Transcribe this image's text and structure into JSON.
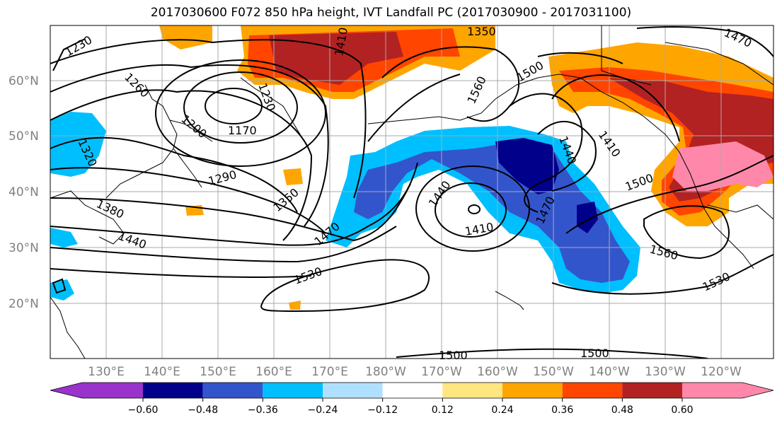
{
  "title": "2017030600 F072 850 hPa height, IVT Landfall PC (2017030900 - 2017031100)",
  "lat_labels": [
    "60°N",
    "50°N",
    "40°N",
    "30°N",
    "20°N"
  ],
  "lon_labels": [
    "130°E",
    "140°E",
    "150°E",
    "160°E",
    "170°E",
    "180°W",
    "170°W",
    "160°W",
    "150°W",
    "140°W",
    "130°W",
    "120°W"
  ],
  "contour_labels": [
    "1230",
    "1260",
    "1200",
    "1170",
    "1230",
    "1410",
    "1350",
    "1560",
    "1500",
    "1470",
    "1320",
    "1290",
    "1350",
    "1380",
    "1440",
    "1470",
    "1530",
    "1440",
    "1410",
    "1470",
    "1440",
    "1410",
    "1500",
    "1560",
    "1530",
    "1500",
    "1500"
  ],
  "colorbar": {
    "colors": [
      "#9933cc",
      "#00008b",
      "#3355cc",
      "#00bfff",
      "#b0e0ff",
      "#ffffff",
      "#ffe680",
      "#ffa500",
      "#ff4500",
      "#b22222",
      "#ff88aa"
    ],
    "ticks": [
      "−0.60",
      "−0.48",
      "−0.36",
      "−0.24",
      "−0.12",
      "0.12",
      "0.24",
      "0.36",
      "0.48",
      "0.60"
    ]
  }
}
